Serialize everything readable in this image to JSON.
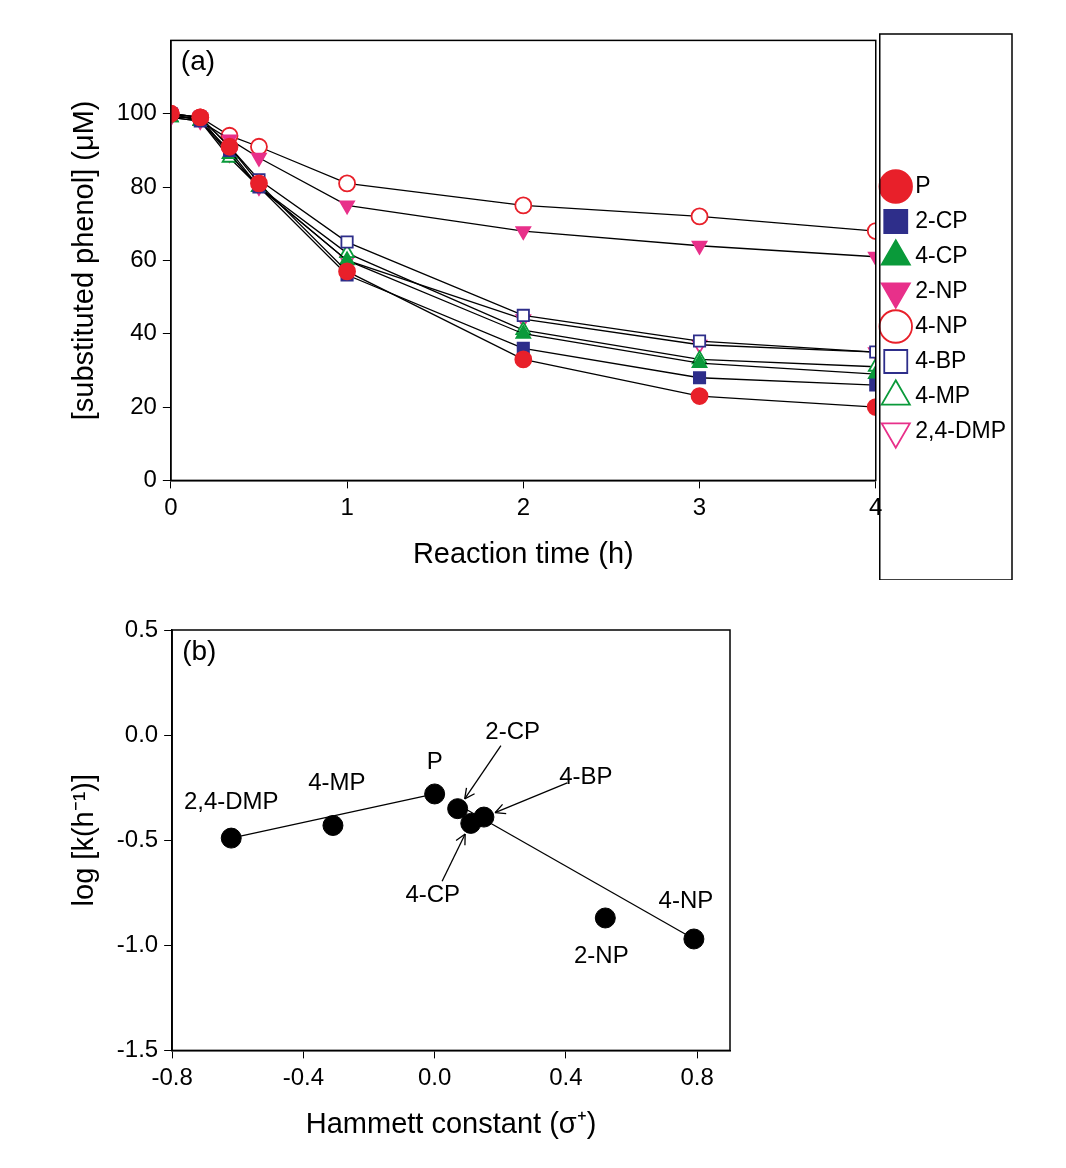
{
  "chart_data": [
    {
      "type": "line",
      "title": "(a)",
      "x_label": "Reaction time (h)",
      "y_label": "[substituted phenol] (μM)",
      "x": [
        0,
        0.167,
        0.333,
        0.5,
        1,
        2,
        3,
        4
      ],
      "series": [
        {
          "name": "P",
          "color": "#e8202a",
          "marker": "circle",
          "values": [
            100,
            99,
            91,
            81,
            57,
            33,
            23,
            20
          ]
        },
        {
          "name": "2-CP",
          "color": "#2e2e8a",
          "marker": "square",
          "values": [
            100,
            98,
            90,
            80,
            56,
            36,
            28,
            26
          ]
        },
        {
          "name": "4-CP",
          "color": "#0a9a3a",
          "marker": "triangle",
          "values": [
            99,
            98,
            89,
            80,
            60,
            40,
            32,
            29
          ]
        },
        {
          "name": "2-NP",
          "color": "#e8308a",
          "marker": "triangle-down",
          "values": [
            100,
            98,
            93,
            88,
            75,
            68,
            64,
            61
          ]
        },
        {
          "name": "4-NP",
          "color": "#e8202a",
          "marker": "circle-open",
          "values": [
            100,
            99,
            94,
            91,
            81,
            75,
            72,
            68
          ]
        },
        {
          "name": "4-BP",
          "color": "#2e2e8a",
          "marker": "square-open",
          "values": [
            100,
            99,
            91,
            82,
            65,
            45,
            38,
            35
          ]
        },
        {
          "name": "4-MP",
          "color": "#0a9a3a",
          "marker": "triangle-open",
          "values": [
            99,
            98,
            88,
            80,
            62,
            41,
            33,
            31
          ]
        },
        {
          "name": "2,4-DMP",
          "color": "#e8308a",
          "marker": "triangle-down-open",
          "values": [
            99,
            99,
            89,
            80,
            60,
            44,
            37,
            35
          ]
        }
      ],
      "xlim": [
        0,
        4
      ],
      "xticks": [
        0,
        1,
        2,
        3,
        4
      ],
      "ylim": [
        0,
        120
      ],
      "yticks": [
        0,
        20,
        40,
        60,
        80,
        100
      ],
      "grid": false,
      "legend": "right"
    },
    {
      "type": "scatter",
      "title": "(b)",
      "x_label": "Hammett constant (σ⁺)",
      "y_label": "log [k(h⁻¹)]",
      "x": [
        -0.62,
        -0.31,
        0,
        0.07,
        0.11,
        0.15,
        0.52,
        0.79
      ],
      "values": [
        -0.49,
        -0.43,
        -0.28,
        -0.35,
        -0.42,
        -0.39,
        -0.87,
        -0.97
      ],
      "point_labels": [
        "2,4-DMP",
        "4-MP",
        "P",
        "2-CP",
        "4-CP",
        "4-BP",
        "2-NP",
        "4-NP"
      ],
      "color": "#000000",
      "marker": "circle",
      "fit_lines": [
        {
          "x": [
            -0.62,
            0
          ],
          "values": [
            -0.49,
            -0.28
          ]
        },
        {
          "x": [
            0.07,
            0.79
          ],
          "values": [
            -0.33,
            -0.97
          ]
        }
      ],
      "xlim": [
        -0.8,
        0.9
      ],
      "xticks": [
        -0.8,
        -0.4,
        {
          "value": 0,
          "label": "0.0"
        },
        0.4,
        0.8
      ],
      "ylim": [
        -1.5,
        0.5
      ],
      "yticks": [
        -1.5,
        {
          "value": -1,
          "label": "-1.0"
        },
        -0.5,
        {
          "value": 0,
          "label": "0.0"
        },
        0.5
      ],
      "grid": false
    }
  ]
}
